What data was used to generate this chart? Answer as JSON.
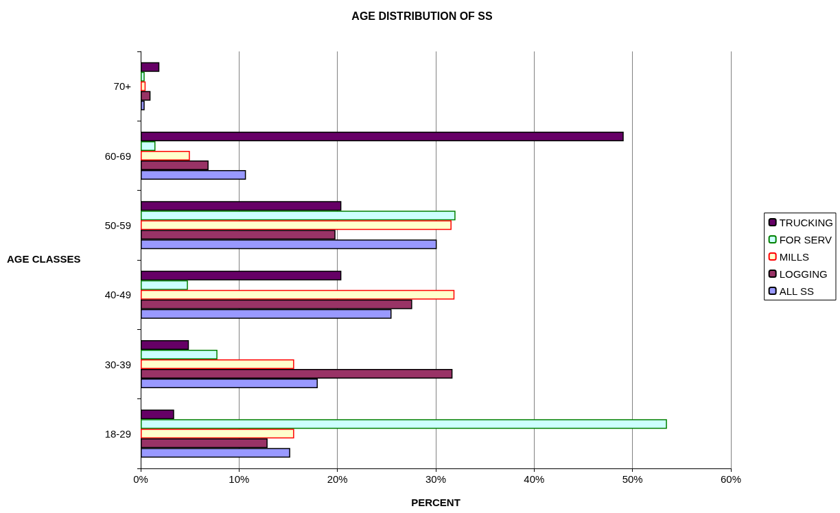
{
  "chart_data": {
    "type": "bar",
    "orientation": "horizontal",
    "title": "AGE DISTRIBUTION OF SS",
    "xlabel": "PERCENT",
    "ylabel": "AGE CLASSES",
    "categories": [
      "70+",
      "60-69",
      "50-59",
      "40-49",
      "30-39",
      "18-29"
    ],
    "series": [
      {
        "name": "TRUCKING",
        "color": "#660066",
        "values": [
          1.9,
          49.1,
          20.4,
          20.4,
          4.9,
          3.4
        ]
      },
      {
        "name": "FOR SERV",
        "color": "#ccffff",
        "values": [
          0.4,
          1.5,
          32.0,
          4.8,
          7.8,
          53.5
        ]
      },
      {
        "name": "MILLS",
        "color": "#ffffcc",
        "values": [
          0.5,
          5.0,
          31.6,
          31.9,
          15.6,
          15.6
        ]
      },
      {
        "name": "LOGGING",
        "color": "#993366",
        "values": [
          1.0,
          6.9,
          19.8,
          27.6,
          31.7,
          12.9
        ]
      },
      {
        "name": "ALL SS",
        "color": "#9999ff",
        "values": [
          0.4,
          10.7,
          30.1,
          25.5,
          18.0,
          15.2
        ]
      }
    ],
    "xlim": [
      0,
      60
    ],
    "xticks": [
      {
        "value": 0,
        "label": "0%"
      },
      {
        "value": 10,
        "label": "10%"
      },
      {
        "value": 20,
        "label": "20%"
      },
      {
        "value": 30,
        "label": "30%"
      },
      {
        "value": 40,
        "label": "40%"
      },
      {
        "value": 50,
        "label": "50%"
      },
      {
        "value": 60,
        "label": "60%"
      }
    ],
    "grid": "x",
    "legend": "right"
  }
}
